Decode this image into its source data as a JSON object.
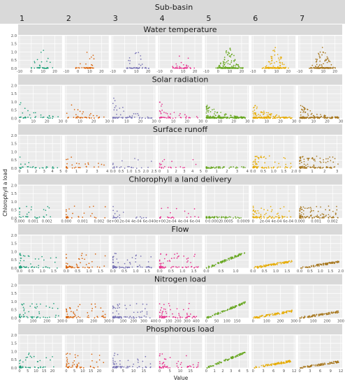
{
  "chart_data": {
    "type": "scatter",
    "title": "Sub-basin",
    "xlabel": "Value",
    "ylabel": "Chlorophyll a load",
    "ylim": [
      0,
      2.0
    ],
    "y_ticks": [
      "0.0",
      "0.5",
      "1.0",
      "1.5",
      "2.0"
    ],
    "grid": true,
    "legend": "none",
    "columns": [
      "1",
      "2",
      "3",
      "4",
      "5",
      "6",
      "7"
    ],
    "colors": [
      "#1b9e77",
      "#d95f02",
      "#7570b3",
      "#e7298a",
      "#66a61e",
      "#e6ab02",
      "#a6761d"
    ],
    "rows": [
      {
        "name": "Water temperature",
        "pattern": "hump",
        "columns": [
          {
            "xlim": [
              -10,
              25
            ],
            "ticks": [
              "-10",
              "0",
              "10",
              "20"
            ],
            "spread": 0.32,
            "n": 40
          },
          {
            "xlim": [
              -10,
              25
            ],
            "ticks": [
              "-10",
              "0",
              "10",
              "20"
            ],
            "spread": 0.32,
            "n": 40
          },
          {
            "xlim": [
              -10,
              25
            ],
            "ticks": [
              "-10",
              "0",
              "10",
              "20"
            ],
            "spread": 0.32,
            "n": 50
          },
          {
            "xlim": [
              -10,
              25
            ],
            "ticks": [
              "-10",
              "0",
              "10",
              "20"
            ],
            "spread": 0.32,
            "n": 45
          },
          {
            "xlim": [
              -10,
              25
            ],
            "ticks": [
              "-10",
              "0",
              "10",
              "20"
            ],
            "spread": 0.32,
            "n": 220
          },
          {
            "xlim": [
              -10,
              25
            ],
            "ticks": [
              "-10",
              "0",
              "10",
              "20"
            ],
            "spread": 0.32,
            "n": 150
          },
          {
            "xlim": [
              -10,
              25
            ],
            "ticks": [
              "-10",
              "0",
              "10",
              "20"
            ],
            "spread": 0.32,
            "n": 150
          }
        ]
      },
      {
        "name": "Solar radiation",
        "pattern": "decay",
        "columns": [
          {
            "xlim": [
              0,
              30
            ],
            "ticks": [
              "0",
              "10",
              "20",
              "30"
            ],
            "spread": 1.0,
            "n": 40
          },
          {
            "xlim": [
              0,
              30
            ],
            "ticks": [
              "0",
              "10",
              "20",
              "30"
            ],
            "spread": 1.0,
            "n": 40
          },
          {
            "xlim": [
              0,
              30
            ],
            "ticks": [
              "0",
              "10",
              "20",
              "30"
            ],
            "spread": 1.0,
            "n": 60
          },
          {
            "xlim": [
              0,
              30
            ],
            "ticks": [
              "0",
              "10",
              "20",
              "30"
            ],
            "spread": 1.0,
            "n": 50
          },
          {
            "xlim": [
              0,
              30
            ],
            "ticks": [
              "0",
              "10",
              "20",
              "30"
            ],
            "spread": 1.0,
            "n": 240
          },
          {
            "xlim": [
              0,
              30
            ],
            "ticks": [
              "0",
              "10",
              "20",
              "30"
            ],
            "spread": 1.0,
            "n": 160
          },
          {
            "xlim": [
              0,
              30
            ],
            "ticks": [
              "0",
              "10",
              "20",
              "30"
            ],
            "spread": 1.0,
            "n": 160
          }
        ]
      },
      {
        "name": "Surface runoff",
        "pattern": "scatter",
        "columns": [
          {
            "xlim": [
              0,
              5
            ],
            "ticks": [
              "0",
              "1",
              "2",
              "3",
              "4",
              "5"
            ],
            "spread": 0.5,
            "n": 30
          },
          {
            "xlim": [
              0,
              4
            ],
            "ticks": [
              "0",
              "1",
              "2",
              "3",
              "4"
            ],
            "spread": 0.5,
            "n": 30
          },
          {
            "xlim": [
              0,
              2.5
            ],
            "ticks": [
              "0.0",
              "0.5",
              "1.0",
              "1.5",
              "2.0",
              "2.5"
            ],
            "spread": 0.5,
            "n": 22
          },
          {
            "xlim": [
              0,
              5
            ],
            "ticks": [
              "0",
              "1",
              "2",
              "3",
              "4",
              "5"
            ],
            "spread": 0.5,
            "n": 22
          },
          {
            "xlim": [
              0,
              4
            ],
            "ticks": [
              "0",
              "1",
              "2",
              "3",
              "4"
            ],
            "spread": 0.06,
            "n": 60
          },
          {
            "xlim": [
              0,
              2.0
            ],
            "ticks": [
              "0.0",
              "0.5",
              "1.0",
              "1.5",
              "2.0"
            ],
            "spread": 0.5,
            "n": 80
          },
          {
            "xlim": [
              0,
              3.3
            ],
            "ticks": [
              "0",
              "1",
              "2",
              "3"
            ],
            "spread": 0.5,
            "n": 120
          }
        ]
      },
      {
        "name": "Chlorophyll a land delivery",
        "pattern": "scatter",
        "columns": [
          {
            "xlim": [
              0,
              0.003
            ],
            "ticks": [
              "0.000",
              "0.001",
              "0.002"
            ],
            "spread": 0.5,
            "n": 30
          },
          {
            "xlim": [
              0,
              0.0025
            ],
            "ticks": [
              "0.000",
              "0.001",
              "0.002"
            ],
            "spread": 0.5,
            "n": 30
          },
          {
            "xlim": [
              0,
              0.0007
            ],
            "ticks": [
              "0e+00",
              "2e-04",
              "4e-04",
              "6e-04"
            ],
            "spread": 0.5,
            "n": 22
          },
          {
            "xlim": [
              0,
              0.0007
            ],
            "ticks": [
              "0e+00",
              "2e-04",
              "4e-04",
              "6e-04"
            ],
            "spread": 0.5,
            "n": 22
          },
          {
            "xlim": [
              0,
              0.001
            ],
            "ticks": [
              "0",
              "0.0002",
              "0.0005",
              "0.0009"
            ],
            "spread": 0.06,
            "n": 60
          },
          {
            "xlim": [
              0,
              0.0007
            ],
            "ticks": [
              "0",
              "2e-04",
              "4e-04",
              "6e-04"
            ],
            "spread": 0.5,
            "n": 80
          },
          {
            "xlim": [
              0,
              0.0025
            ],
            "ticks": [
              "0.000",
              "0.001",
              "0.002"
            ],
            "spread": 0.5,
            "n": 120
          }
        ]
      },
      {
        "name": "Flow",
        "pattern": "linear",
        "columns": [
          {
            "xlim": [
              0,
              1.8
            ],
            "ticks": [
              "0.0",
              "0.5",
              "1.0",
              "1.5"
            ],
            "spread": 0.6,
            "n": 60,
            "slope": 0
          },
          {
            "xlim": [
              0,
              1.8
            ],
            "ticks": [
              "0.0",
              "0.5",
              "1.0",
              "1.5"
            ],
            "spread": 0.6,
            "n": 60,
            "slope": 0
          },
          {
            "xlim": [
              0,
              1.8
            ],
            "ticks": [
              "0.0",
              "0.5",
              "1.0",
              "1.5"
            ],
            "spread": 0.6,
            "n": 80,
            "slope": 0
          },
          {
            "xlim": [
              0,
              1.8
            ],
            "ticks": [
              "0.0",
              "0.5",
              "1.0",
              "1.5"
            ],
            "spread": 0.6,
            "n": 70,
            "slope": 0
          },
          {
            "xlim": [
              0,
              1.4
            ],
            "ticks": [
              "0.0",
              "0.5",
              "1.0"
            ],
            "spread": 0,
            "n": 90,
            "slope": 1.0
          },
          {
            "xlim": [
              0,
              1.8
            ],
            "ticks": [
              "0.0",
              "0.5",
              "1.0",
              "1.5"
            ],
            "spread": 0,
            "n": 90,
            "slope": 0.45
          },
          {
            "xlim": [
              0,
              2.0
            ],
            "ticks": [
              "0.0",
              "0.5",
              "1.0",
              "1.5",
              "2.0"
            ],
            "spread": 0,
            "n": 90,
            "slope": 0.4
          }
        ]
      },
      {
        "name": "Nitrogen load",
        "pattern": "linear",
        "columns": [
          {
            "xlim": [
              0,
              300
            ],
            "ticks": [
              "0",
              "100",
              "200",
              "300"
            ],
            "spread": 0.6,
            "n": 60,
            "slope": 0
          },
          {
            "xlim": [
              0,
              300
            ],
            "ticks": [
              "0",
              "100",
              "200",
              "300"
            ],
            "spread": 0.6,
            "n": 60,
            "slope": 0
          },
          {
            "xlim": [
              0,
              400
            ],
            "ticks": [
              "0",
              "100",
              "200",
              "300",
              "400"
            ],
            "spread": 0.6,
            "n": 80,
            "slope": 0
          },
          {
            "xlim": [
              0,
              450
            ],
            "ticks": [
              "0",
              "100",
              "200",
              "300",
              "400"
            ],
            "spread": 0.6,
            "n": 70,
            "slope": 0
          },
          {
            "xlim": [
              0,
              200
            ],
            "ticks": [
              "0",
              "50",
              "100",
              "150"
            ],
            "spread": 0,
            "n": 90,
            "slope": 1.0
          },
          {
            "xlim": [
              0,
              300
            ],
            "ticks": [
              "0",
              "100",
              "200",
              "300"
            ],
            "spread": 0,
            "n": 90,
            "slope": 0.45
          },
          {
            "xlim": [
              0,
              300
            ],
            "ticks": [
              "0",
              "100",
              "200",
              "300"
            ],
            "spread": 0,
            "n": 90,
            "slope": 0.4
          }
        ]
      },
      {
        "name": "Phosphorous load",
        "pattern": "linear",
        "columns": [
          {
            "xlim": [
              0,
              25
            ],
            "ticks": [
              "0",
              "5",
              "10",
              "15",
              "20"
            ],
            "spread": 0.6,
            "n": 50,
            "slope": 0
          },
          {
            "xlim": [
              0,
              25
            ],
            "ticks": [
              "0",
              "5",
              "10",
              "15",
              "20"
            ],
            "spread": 0.6,
            "n": 50,
            "slope": 0
          },
          {
            "xlim": [
              0,
              20
            ],
            "ticks": [
              "0",
              "5",
              "10",
              "15"
            ],
            "spread": 0.6,
            "n": 60,
            "slope": 0
          },
          {
            "xlim": [
              0,
              20
            ],
            "ticks": [
              "0",
              "5",
              "10",
              "15"
            ],
            "spread": 0.6,
            "n": 60,
            "slope": 0
          },
          {
            "xlim": [
              0,
              5
            ],
            "ticks": [
              "0",
              "1",
              "2",
              "3",
              "4",
              "5"
            ],
            "spread": 0,
            "n": 90,
            "slope": 1.0
          },
          {
            "xlim": [
              0,
              12
            ],
            "ticks": [
              "0",
              "3",
              "6",
              "9",
              "12"
            ],
            "spread": 0,
            "n": 90,
            "slope": 0.45
          },
          {
            "xlim": [
              0,
              12
            ],
            "ticks": [
              "0",
              "3",
              "6",
              "9",
              "12"
            ],
            "spread": 0,
            "n": 90,
            "slope": 0.4
          }
        ]
      }
    ]
  }
}
